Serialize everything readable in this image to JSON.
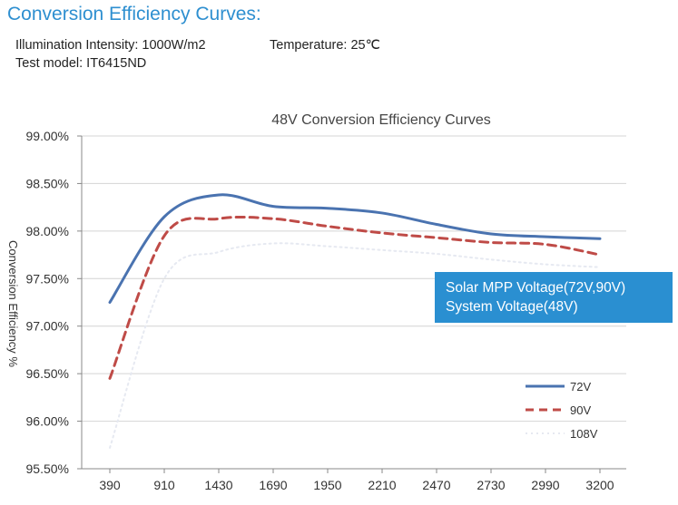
{
  "header": {
    "title": "Conversion Efficiency Curves:",
    "illumination": "Illumination Intensity: 1000W/m2",
    "temperature": "Temperature: 25℃",
    "test_model": "Test model: IT6415ND"
  },
  "callout": {
    "line1": "Solar MPP Voltage(72V,90V)",
    "line2": "System Voltage(48V)"
  },
  "chart_data": {
    "type": "line",
    "title": "48V Conversion Efficiency Curves",
    "xlabel": "",
    "ylabel": "Conversion Efficiency %",
    "x": [
      390,
      910,
      1430,
      1690,
      1950,
      2210,
      2470,
      2730,
      2990,
      3200
    ],
    "x_tick_labels": [
      "390",
      "910",
      "1430",
      "1690",
      "1950",
      "2210",
      "2470",
      "2730",
      "2990",
      "3200"
    ],
    "y_tick_labels": [
      "95.50%",
      "96.00%",
      "96.50%",
      "97.00%",
      "97.50%",
      "98.00%",
      "98.50%",
      "99.00%"
    ],
    "ylim": [
      95.5,
      99.0
    ],
    "grid": true,
    "legend_position": "bottom-right",
    "series": [
      {
        "name": "72V",
        "color": "#4a73b0",
        "style": "solid",
        "values": [
          97.25,
          98.15,
          98.38,
          98.26,
          98.24,
          98.19,
          98.07,
          97.97,
          97.94,
          97.92
        ]
      },
      {
        "name": "90V",
        "color": "#bf4b47",
        "style": "dashed",
        "values": [
          96.45,
          97.95,
          98.13,
          98.13,
          98.05,
          97.98,
          97.93,
          97.88,
          97.86,
          97.75
        ]
      },
      {
        "name": "108V",
        "color": "#e6e9f1",
        "style": "dotted",
        "values": [
          95.72,
          97.5,
          97.78,
          97.87,
          97.84,
          97.8,
          97.76,
          97.7,
          97.65,
          97.62
        ]
      }
    ]
  }
}
